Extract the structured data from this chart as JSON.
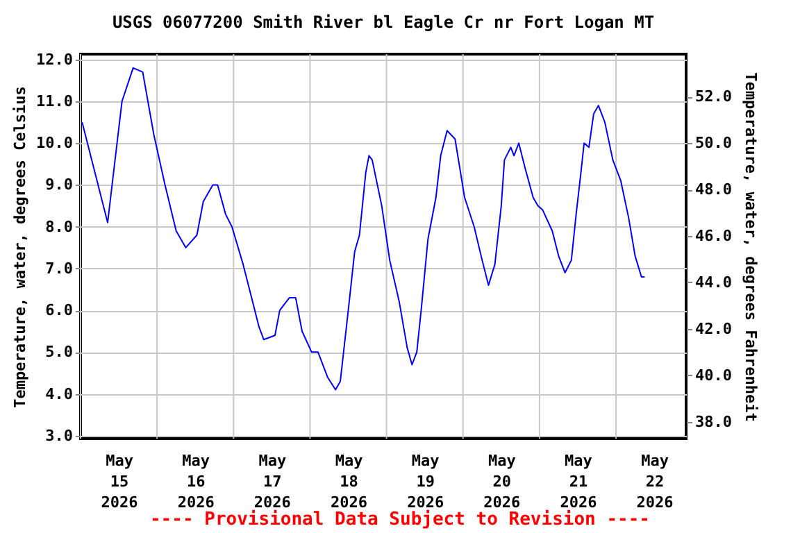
{
  "chart_data": {
    "type": "line",
    "title": "USGS 06077200 Smith River bl Eagle Cr nr Fort Logan MT",
    "ylabel": "Temperature, water, degrees Celsius",
    "y2label": "Temperature, water, degrees Fahrenheit",
    "annotations": [
      "---- Provisional Data Subject to Revision ----"
    ],
    "x": [
      "2026-05-15T00:30",
      "2026-05-15T08:30",
      "2026-05-15T13:00",
      "2026-05-15T16:30",
      "2026-05-15T19:30",
      "2026-05-15T23:00",
      "2026-05-16T02:30",
      "2026-05-16T06:00",
      "2026-05-16T09:00",
      "2026-05-16T12:30",
      "2026-05-16T14:30",
      "2026-05-16T17:30",
      "2026-05-16T19:00",
      "2026-05-16T21:30",
      "2026-05-16T23:30",
      "2026-05-17T03:00",
      "2026-05-17T06:00",
      "2026-05-17T08:00",
      "2026-05-17T09:30",
      "2026-05-17T13:00",
      "2026-05-17T14:30",
      "2026-05-17T17:30",
      "2026-05-17T19:30",
      "2026-05-17T21:30",
      "2026-05-18T00:30",
      "2026-05-18T02:30",
      "2026-05-18T05:30",
      "2026-05-18T08:00",
      "2026-05-18T09:30",
      "2026-05-18T12:00",
      "2026-05-18T14:00",
      "2026-05-18T15:30",
      "2026-05-18T17:30",
      "2026-05-18T18:30",
      "2026-05-18T19:30",
      "2026-05-18T22:30",
      "2026-05-19T01:00",
      "2026-05-19T04:00",
      "2026-05-19T06:30",
      "2026-05-19T08:00",
      "2026-05-19T09:30",
      "2026-05-19T11:00",
      "2026-05-19T13:00",
      "2026-05-19T15:30",
      "2026-05-19T17:00",
      "2026-05-19T19:00",
      "2026-05-19T21:30",
      "2026-05-20T00:30",
      "2026-05-20T03:30",
      "2026-05-20T06:00",
      "2026-05-20T08:00",
      "2026-05-20T10:00",
      "2026-05-20T12:00",
      "2026-05-20T13:00",
      "2026-05-20T15:00",
      "2026-05-20T16:00",
      "2026-05-20T17:30",
      "2026-05-20T19:30",
      "2026-05-20T22:00",
      "2026-05-20T23:30",
      "2026-05-21T01:00",
      "2026-05-21T04:00",
      "2026-05-21T06:00",
      "2026-05-21T08:00",
      "2026-05-21T10:00",
      "2026-05-21T11:30",
      "2026-05-21T13:00",
      "2026-05-21T14:00",
      "2026-05-21T15:30",
      "2026-05-21T17:00",
      "2026-05-21T18:30",
      "2026-05-21T20:30",
      "2026-05-21T23:00",
      "2026-05-22T01:30",
      "2026-05-22T04:00",
      "2026-05-22T06:00",
      "2026-05-22T08:00",
      "2026-05-22T09:00"
    ],
    "series": [
      {
        "color": "#0000ff",
        "values": [
          10.5,
          8.1,
          11.0,
          11.8,
          11.7,
          10.2,
          9.0,
          7.9,
          7.5,
          7.8,
          8.6,
          9.0,
          9.0,
          8.3,
          8.0,
          7.1,
          6.2,
          5.6,
          5.3,
          5.4,
          6.0,
          6.3,
          6.3,
          5.5,
          5.0,
          5.0,
          4.4,
          4.1,
          4.3,
          6.0,
          7.4,
          7.8,
          9.3,
          9.7,
          9.6,
          8.5,
          7.2,
          6.2,
          5.1,
          4.7,
          5.0,
          6.1,
          7.7,
          8.7,
          9.7,
          10.3,
          10.1,
          8.7,
          8.0,
          7.2,
          6.6,
          7.1,
          8.5,
          9.6,
          9.9,
          9.7,
          10.0,
          9.4,
          8.7,
          8.5,
          8.4,
          7.9,
          7.3,
          6.9,
          7.2,
          8.3,
          9.3,
          10.0,
          9.9,
          10.7,
          10.9,
          10.5,
          9.6,
          9.1,
          8.2,
          7.3,
          6.8,
          6.8
        ]
      }
    ],
    "xlim": [
      "2026-05-15T00:00",
      "2026-05-22T22:00"
    ],
    "xticks": [
      {
        "value": "2026-05-15T00:00",
        "label": null
      },
      {
        "value": "2026-05-15T12:00",
        "label": "May 15 2026"
      },
      {
        "value": "2026-05-16T00:00",
        "label": null
      },
      {
        "value": "2026-05-16T12:00",
        "label": "May 16 2026"
      },
      {
        "value": "2026-05-17T00:00",
        "label": null
      },
      {
        "value": "2026-05-17T12:00",
        "label": "May 17 2026"
      },
      {
        "value": "2026-05-18T00:00",
        "label": null
      },
      {
        "value": "2026-05-18T12:00",
        "label": "May 18 2026"
      },
      {
        "value": "2026-05-19T00:00",
        "label": null
      },
      {
        "value": "2026-05-19T12:00",
        "label": "May 19 2026"
      },
      {
        "value": "2026-05-20T00:00",
        "label": null
      },
      {
        "value": "2026-05-20T12:00",
        "label": "May 20 2026"
      },
      {
        "value": "2026-05-21T00:00",
        "label": null
      },
      {
        "value": "2026-05-21T12:00",
        "label": "May 21 2026"
      },
      {
        "value": "2026-05-22T00:00",
        "label": null
      },
      {
        "value": "2026-05-22T12:00",
        "label": "May 22 2026"
      }
    ],
    "ylim": [
      2.93,
      12.13
    ],
    "yticks": [
      {
        "value": 3,
        "label": "3.0"
      },
      {
        "value": 4,
        "label": "4.0"
      },
      {
        "value": 5,
        "label": "5.0"
      },
      {
        "value": 6,
        "label": "6.0"
      },
      {
        "value": 7,
        "label": "7.0"
      },
      {
        "value": 8,
        "label": "8.0"
      },
      {
        "value": 9,
        "label": "9.0"
      },
      {
        "value": 10,
        "label": "10.0"
      },
      {
        "value": 11,
        "label": "11.0"
      },
      {
        "value": 12,
        "label": "12.0"
      }
    ],
    "y2lim": [
      37.27,
      53.83
    ],
    "y2ticks": [
      {
        "value": 38,
        "label": "38.0"
      },
      {
        "value": 40,
        "label": "40.0"
      },
      {
        "value": 42,
        "label": "42.0"
      },
      {
        "value": 44,
        "label": "44.0"
      },
      {
        "value": 46,
        "label": "46.0"
      },
      {
        "value": 48,
        "label": "48.0"
      },
      {
        "value": 50,
        "label": "50.0"
      },
      {
        "value": 52,
        "label": "52.0"
      }
    ],
    "grid": true,
    "legend": false,
    "line_style": "solid",
    "marker": "none"
  }
}
